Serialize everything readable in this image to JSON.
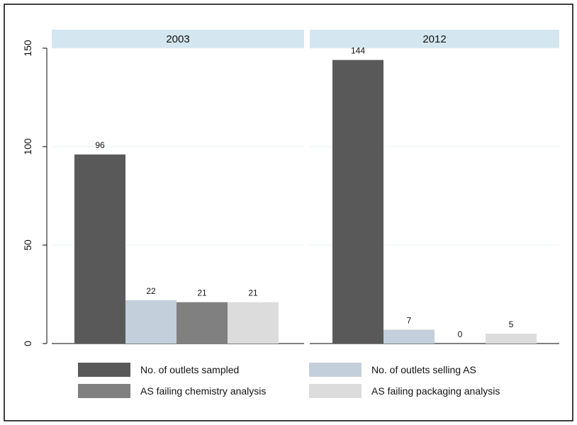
{
  "chart_data": {
    "type": "bar",
    "categories": [
      "2003",
      "2012"
    ],
    "series": [
      {
        "name": "No. of outlets sampled",
        "values": [
          96,
          144
        ],
        "color": "#595959"
      },
      {
        "name": "No. of outlets selling AS",
        "values": [
          22,
          7
        ],
        "color": "#c3cfdb"
      },
      {
        "name": "AS failing chemistry analysis",
        "values": [
          21,
          0
        ],
        "color": "#808080"
      },
      {
        "name": "AS failing packaging analysis",
        "values": [
          21,
          5
        ],
        "color": "#dcdcdc"
      }
    ],
    "title": "",
    "xlabel": "",
    "ylabel": "",
    "ylim": [
      0,
      150
    ],
    "yticks": [
      0,
      50,
      100,
      150
    ],
    "grid": true,
    "legend_position": "bottom",
    "panel_header_color": "#d4e6ef",
    "gridline_color": "#eaf2f3"
  }
}
